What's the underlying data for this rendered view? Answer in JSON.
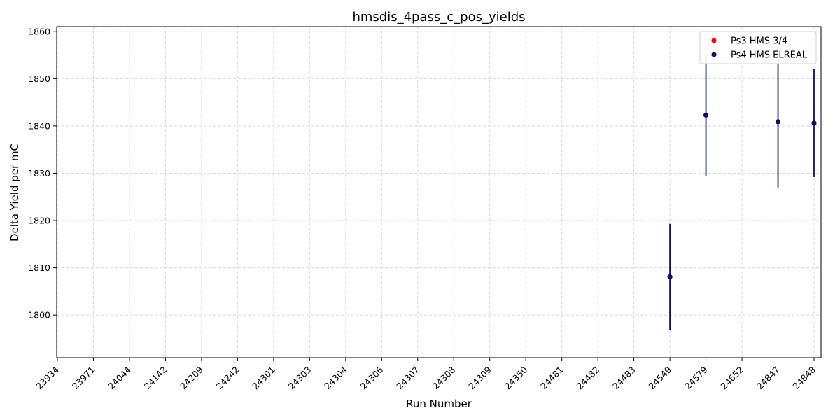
{
  "chart_data": {
    "type": "scatter",
    "title": "hmsdis_4pass_c_pos_yields",
    "xlabel": "Run Number",
    "ylabel": "Delta Yield per mC",
    "categories": [
      "23934",
      "23971",
      "24044",
      "24142",
      "24209",
      "24242",
      "24301",
      "24303",
      "24304",
      "24306",
      "24307",
      "24308",
      "24309",
      "24350",
      "24481",
      "24482",
      "24483",
      "24549",
      "24579",
      "24652",
      "24847",
      "24848"
    ],
    "ylim": [
      1791,
      1861
    ],
    "yticks": [
      1800,
      1810,
      1820,
      1830,
      1840,
      1850,
      1860
    ],
    "grid": true,
    "legend_position": "top-right",
    "series": [
      {
        "name": "Ps3 HMS 3/4",
        "color": "#ff0000",
        "points": []
      },
      {
        "name": "Ps4 HMS ELREAL",
        "color": "#0b0b7a",
        "points": [
          {
            "x": "24549",
            "y": 1808.1,
            "yerr": 11.2
          },
          {
            "x": "24579",
            "y": 1842.3,
            "yerr": 12.8
          },
          {
            "x": "24847",
            "y": 1840.9,
            "yerr": 13.9
          },
          {
            "x": "24848",
            "y": 1840.6,
            "yerr": 11.4
          }
        ]
      }
    ]
  }
}
